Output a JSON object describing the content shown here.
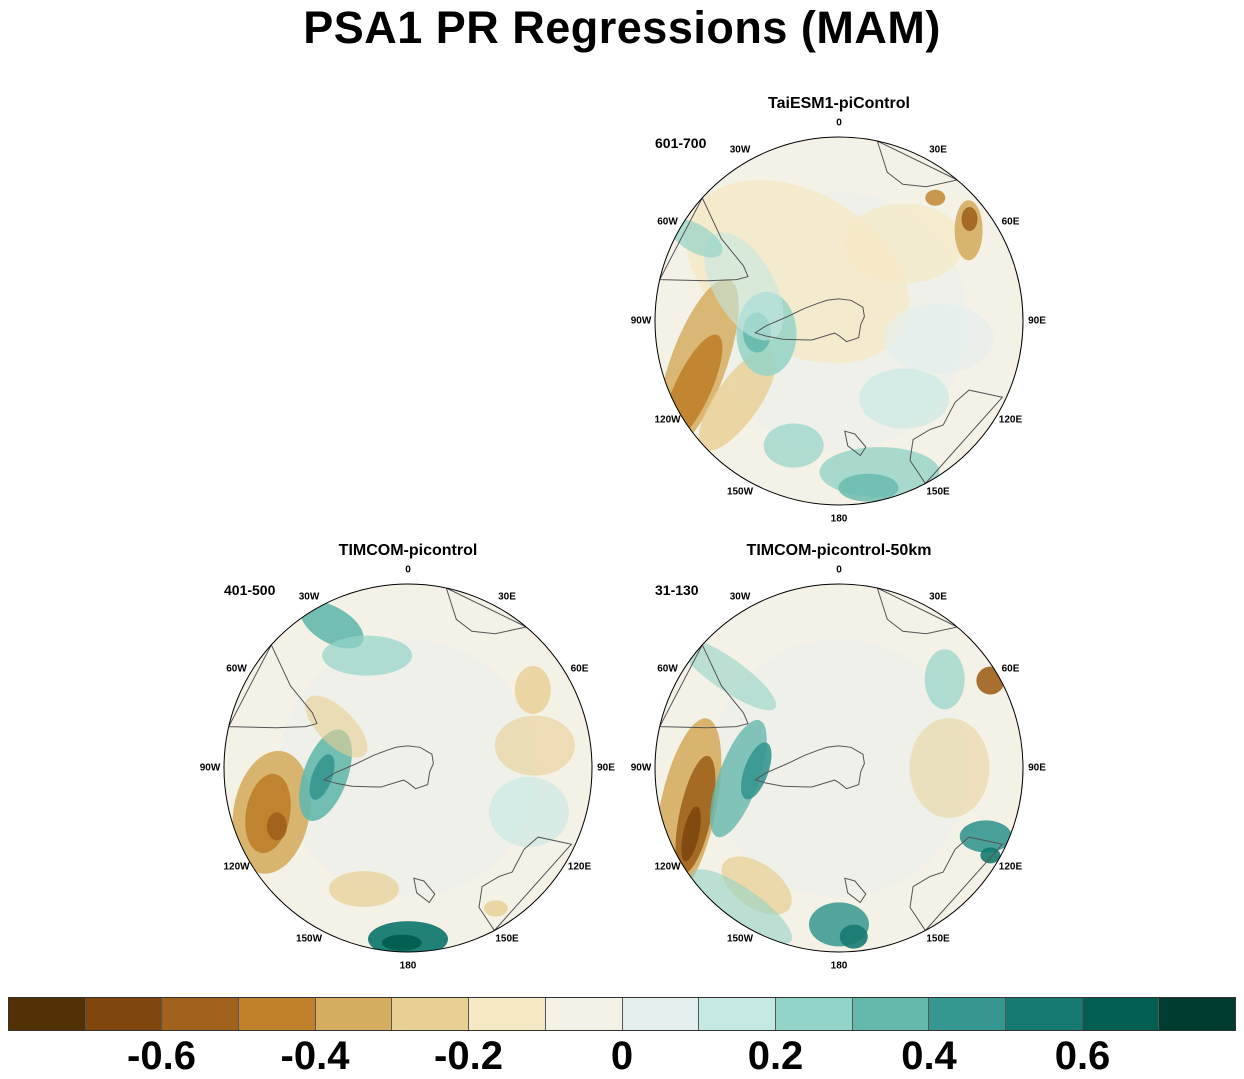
{
  "title": "PSA1 PR Regressions (MAM)",
  "panels": [
    {
      "name": "TaiESM1-piControl",
      "period": "601-700",
      "lon_labels": [
        "0",
        "30E",
        "60E",
        "90E",
        "120E",
        "150E",
        "180",
        "150W",
        "120W",
        "90W",
        "60W",
        "30W"
      ]
    },
    {
      "name": "TIMCOM-picontrol",
      "period": "401-500",
      "lon_labels": [
        "0",
        "30E",
        "60E",
        "90E",
        "120E",
        "150E",
        "180",
        "150W",
        "120W",
        "90W",
        "60W",
        "30W"
      ]
    },
    {
      "name": "TIMCOM-picontrol-50km",
      "period": "31-130",
      "lon_labels": [
        "0",
        "30E",
        "60E",
        "90E",
        "120E",
        "150E",
        "180",
        "150W",
        "120W",
        "90W",
        "60W",
        "30W"
      ]
    }
  ],
  "colorbar": {
    "colors": [
      "#543005",
      "#7f470e",
      "#a0621c",
      "#bf812c",
      "#d5ad60",
      "#e8cf92",
      "#f5e8c5",
      "#f4f1e7",
      "#e2efee",
      "#c4e8e2",
      "#94d3c7",
      "#65b8ac",
      "#35978f",
      "#167a70",
      "#015e51",
      "#003c30"
    ],
    "labels": [
      "-0.6",
      "-0.4",
      "-0.2",
      "0",
      "0.2",
      "0.4",
      "0.6"
    ]
  }
}
